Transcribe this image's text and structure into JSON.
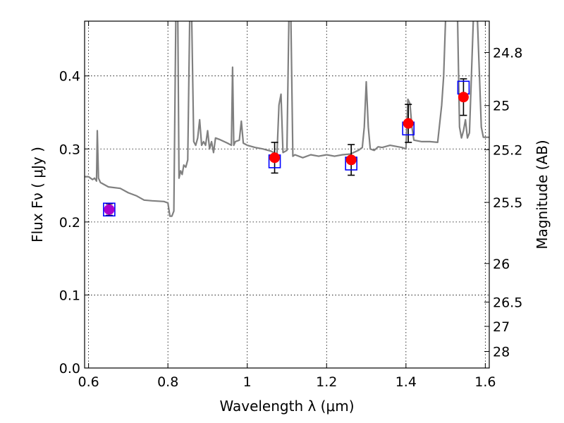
{
  "chart_data": {
    "type": "scatter",
    "title": "",
    "xlabel": "Wavelength  λ (μm)",
    "ylabel": "Flux  Fν  ( μJy )",
    "y2label": "Magnitude (AB)",
    "xlim": [
      0.59,
      1.61
    ],
    "ylim": [
      0.0,
      0.475
    ],
    "grid": true,
    "legend": "none",
    "x_ticks": [
      0.6,
      0.8,
      1.0,
      1.2,
      1.4,
      1.6
    ],
    "x_tick_labels": [
      "0.6",
      "0.8",
      "1",
      "1.2",
      "1.4",
      "1.6"
    ],
    "y_ticks": [
      0.0,
      0.1,
      0.2,
      0.3,
      0.4
    ],
    "y_tick_labels": [
      "0.0",
      "0.1",
      "0.2",
      "0.3",
      "0.4"
    ],
    "mag_ticks": [
      {
        "label": "24.8",
        "flux": 0.4321
      },
      {
        "label": "25",
        "flux": 0.3594
      },
      {
        "label": "25.2",
        "flux": 0.299
      },
      {
        "label": "25.5",
        "flux": 0.2268
      },
      {
        "label": "26",
        "flux": 0.1431
      },
      {
        "label": "26.5",
        "flux": 0.0903
      },
      {
        "label": "27",
        "flux": 0.057
      },
      {
        "label": "28",
        "flux": 0.0227
      }
    ],
    "series": [
      {
        "kind": "model_spectrum",
        "color": "#808080",
        "points": [
          [
            0.59,
            0.262
          ],
          [
            0.6,
            0.262
          ],
          [
            0.61,
            0.258
          ],
          [
            0.615,
            0.26
          ],
          [
            0.62,
            0.256
          ],
          [
            0.622,
            0.325
          ],
          [
            0.625,
            0.26
          ],
          [
            0.63,
            0.254
          ],
          [
            0.65,
            0.248
          ],
          [
            0.68,
            0.246
          ],
          [
            0.7,
            0.24
          ],
          [
            0.72,
            0.236
          ],
          [
            0.74,
            0.23
          ],
          [
            0.76,
            0.229
          ],
          [
            0.79,
            0.228
          ],
          [
            0.8,
            0.226
          ],
          [
            0.805,
            0.208
          ],
          [
            0.81,
            0.208
          ],
          [
            0.815,
            0.215
          ],
          [
            0.82,
            0.48
          ],
          [
            0.825,
            0.48
          ],
          [
            0.828,
            0.26
          ],
          [
            0.832,
            0.27
          ],
          [
            0.836,
            0.265
          ],
          [
            0.84,
            0.278
          ],
          [
            0.845,
            0.275
          ],
          [
            0.85,
            0.285
          ],
          [
            0.855,
            0.48
          ],
          [
            0.86,
            0.48
          ],
          [
            0.865,
            0.31
          ],
          [
            0.87,
            0.305
          ],
          [
            0.875,
            0.315
          ],
          [
            0.88,
            0.34
          ],
          [
            0.885,
            0.305
          ],
          [
            0.89,
            0.31
          ],
          [
            0.895,
            0.305
          ],
          [
            0.9,
            0.325
          ],
          [
            0.905,
            0.3
          ],
          [
            0.91,
            0.31
          ],
          [
            0.915,
            0.295
          ],
          [
            0.92,
            0.315
          ],
          [
            0.93,
            0.313
          ],
          [
            0.95,
            0.308
          ],
          [
            0.96,
            0.305
          ],
          [
            0.963,
            0.412
          ],
          [
            0.966,
            0.305
          ],
          [
            0.97,
            0.31
          ],
          [
            0.98,
            0.312
          ],
          [
            0.985,
            0.338
          ],
          [
            0.99,
            0.308
          ],
          [
            1.0,
            0.305
          ],
          [
            1.02,
            0.302
          ],
          [
            1.04,
            0.3
          ],
          [
            1.06,
            0.297
          ],
          [
            1.07,
            0.294
          ],
          [
            1.075,
            0.293
          ],
          [
            1.08,
            0.36
          ],
          [
            1.085,
            0.375
          ],
          [
            1.09,
            0.295
          ],
          [
            1.1,
            0.298
          ],
          [
            1.105,
            0.48
          ],
          [
            1.11,
            0.48
          ],
          [
            1.115,
            0.29
          ],
          [
            1.12,
            0.292
          ],
          [
            1.14,
            0.288
          ],
          [
            1.16,
            0.292
          ],
          [
            1.18,
            0.29
          ],
          [
            1.2,
            0.292
          ],
          [
            1.22,
            0.29
          ],
          [
            1.24,
            0.292
          ],
          [
            1.26,
            0.293
          ],
          [
            1.28,
            0.298
          ],
          [
            1.29,
            0.302
          ],
          [
            1.295,
            0.33
          ],
          [
            1.3,
            0.392
          ],
          [
            1.305,
            0.33
          ],
          [
            1.31,
            0.3
          ],
          [
            1.32,
            0.298
          ],
          [
            1.33,
            0.303
          ],
          [
            1.34,
            0.302
          ],
          [
            1.36,
            0.305
          ],
          [
            1.38,
            0.303
          ],
          [
            1.39,
            0.302
          ],
          [
            1.4,
            0.3
          ],
          [
            1.405,
            0.368
          ],
          [
            1.41,
            0.362
          ],
          [
            1.415,
            0.33
          ],
          [
            1.42,
            0.312
          ],
          [
            1.44,
            0.31
          ],
          [
            1.46,
            0.31
          ],
          [
            1.48,
            0.309
          ],
          [
            1.49,
            0.36
          ],
          [
            1.495,
            0.4
          ],
          [
            1.5,
            0.48
          ],
          [
            1.52,
            0.48
          ],
          [
            1.53,
            0.48
          ],
          [
            1.535,
            0.33
          ],
          [
            1.54,
            0.315
          ],
          [
            1.545,
            0.325
          ],
          [
            1.55,
            0.34
          ],
          [
            1.555,
            0.315
          ],
          [
            1.56,
            0.322
          ],
          [
            1.57,
            0.48
          ],
          [
            1.58,
            0.48
          ],
          [
            1.59,
            0.33
          ],
          [
            1.595,
            0.316
          ],
          [
            1.61,
            0.316
          ]
        ]
      },
      {
        "kind": "model_band_flux",
        "color": "#0000ff",
        "marker": "open-square",
        "points": [
          [
            0.652,
            0.217
          ],
          [
            1.069,
            0.283
          ],
          [
            1.262,
            0.28
          ],
          [
            1.406,
            0.328
          ],
          [
            1.545,
            0.384
          ]
        ]
      },
      {
        "kind": "observed",
        "color": "#ff0000",
        "marker": "filled-circle",
        "points": [
          {
            "x": 0.652,
            "y": 0.217,
            "err": 0.008,
            "color": "#aa00cc"
          },
          {
            "x": 1.069,
            "y": 0.288,
            "err": 0.021
          },
          {
            "x": 1.262,
            "y": 0.285,
            "err": 0.021
          },
          {
            "x": 1.406,
            "y": 0.335,
            "err": 0.026
          },
          {
            "x": 1.545,
            "y": 0.371,
            "err": 0.025
          }
        ]
      }
    ]
  }
}
